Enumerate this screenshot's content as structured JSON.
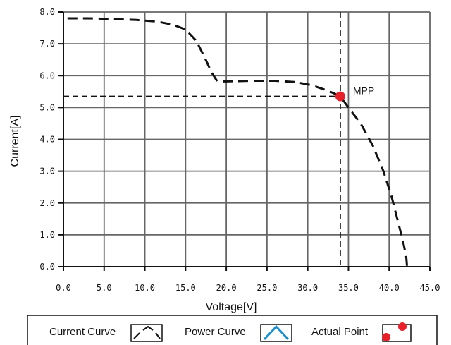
{
  "chart_data": {
    "type": "line",
    "xlabel": "Voltage[V]",
    "ylabel": "Current[A]",
    "xlim": [
      0,
      45
    ],
    "ylim": [
      0,
      8
    ],
    "x_ticks": [
      "0.0",
      "5.0",
      "10.0",
      "15.0",
      "20.0",
      "25.0",
      "30.0",
      "35.0",
      "40.0",
      "45.0"
    ],
    "y_ticks": [
      "0.0",
      "1.0",
      "2.0",
      "3.0",
      "4.0",
      "5.0",
      "6.0",
      "7.0",
      "8.0"
    ],
    "grid": true,
    "series": [
      {
        "x": [
          0.5,
          3,
          6,
          9,
          11.5,
          13.5,
          15,
          16.3,
          17.3,
          18.2,
          18.9,
          20,
          23,
          26,
          28.5,
          30.5,
          32,
          33.2,
          34,
          35,
          36.5,
          38,
          39.3,
          40.3,
          41.1,
          41.7,
          42.1,
          42.2
        ],
        "y": [
          7.8,
          7.8,
          7.78,
          7.75,
          7.7,
          7.6,
          7.45,
          7.1,
          6.6,
          6.1,
          5.82,
          5.82,
          5.84,
          5.84,
          5.8,
          5.7,
          5.57,
          5.45,
          5.35,
          5.0,
          4.5,
          3.8,
          3.0,
          2.2,
          1.4,
          0.8,
          0.3,
          0.0
        ]
      }
    ],
    "mpp": {
      "x": 34.0,
      "y": 5.35,
      "label": "MPP"
    },
    "guide_lines": {
      "vertical_x": 34.0,
      "horizontal_y": 5.35
    },
    "colors": {
      "curve": "#111111",
      "grid": "#666666",
      "mpp_point": "#e8202a",
      "power_curve": "#1a8fd0"
    }
  },
  "legend": {
    "items": [
      {
        "label": "Current Curve",
        "icon": "current-curve-icon"
      },
      {
        "label": "Power Curve",
        "icon": "power-curve-icon"
      },
      {
        "label": "Actual Point",
        "icon": "actual-point-icon"
      }
    ]
  }
}
